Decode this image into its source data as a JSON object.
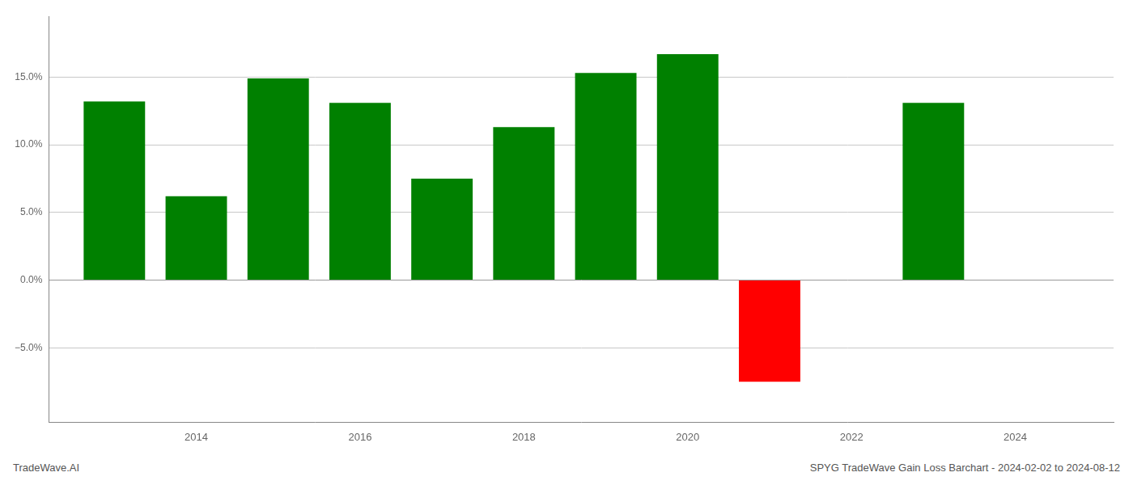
{
  "chart_data": {
    "type": "bar",
    "x": [
      2013,
      2014,
      2015,
      2016,
      2017,
      2018,
      2019,
      2020,
      2021,
      2023
    ],
    "values": [
      0.132,
      0.062,
      0.149,
      0.131,
      0.075,
      0.113,
      0.153,
      0.167,
      -0.075,
      0.131
    ],
    "colors": [
      "#008000",
      "#008000",
      "#008000",
      "#008000",
      "#008000",
      "#008000",
      "#008000",
      "#008000",
      "#ff0000",
      "#008000"
    ],
    "xlim": [
      2012.2,
      2025.2
    ],
    "xticks": [
      2014,
      2016,
      2018,
      2020,
      2022,
      2024
    ],
    "ylim": [
      -0.105,
      0.195
    ],
    "yticks": [
      {
        "value": -0.05,
        "label": "−5.0%"
      },
      {
        "value": 0.0,
        "label": "0.0%"
      },
      {
        "value": 0.05,
        "label": "5.0%"
      },
      {
        "value": 0.1,
        "label": "10.0%"
      },
      {
        "value": 0.15,
        "label": "15.0%"
      }
    ],
    "grid": true,
    "annotations": [
      "TradeWave.AI",
      "SPYG TradeWave Gain Loss Barchart - 2024-02-02 to 2024-08-12"
    ]
  }
}
